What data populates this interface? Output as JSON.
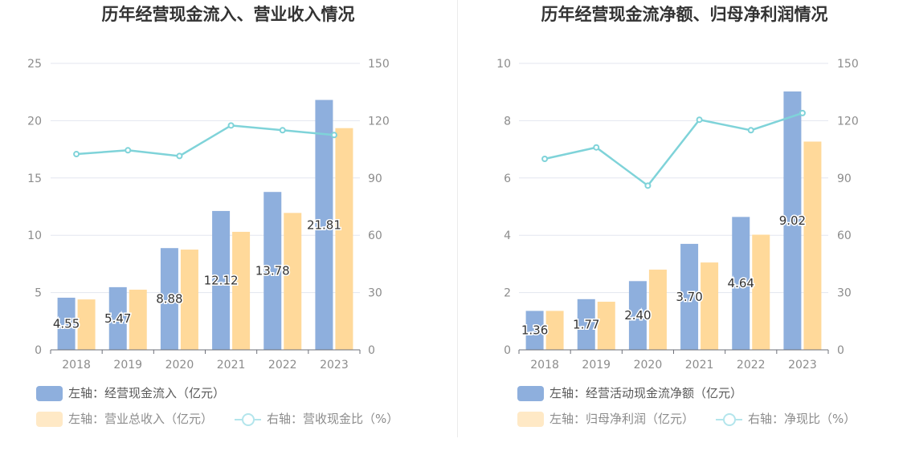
{
  "colors": {
    "bar_primary": "#8eafdd",
    "bar_secondary": "#ffd99a",
    "line": "#7fd3d9",
    "legend_faded_bar": "#ffe9c6",
    "legend_faded_line": "#b3e5ec",
    "grid": "#e3e6ef",
    "axis_text": "#8c8c8c"
  },
  "charts": [
    {
      "title": "历年经营现金流入、营业收入情况",
      "legend": [
        {
          "label": "左轴：经营现金流入（亿元）",
          "icon": "bar-swatch-icon"
        },
        {
          "label": "左轴：营业总收入（亿元）",
          "icon": "bar-swatch-icon"
        },
        {
          "label": "右轴：营收现金比（%）",
          "icon": "line-marker-icon"
        }
      ]
    },
    {
      "title": "历年经营现金流净额、归母净利润情况",
      "legend": [
        {
          "label": "左轴：经营活动现金流净额（亿元）",
          "icon": "bar-swatch-icon"
        },
        {
          "label": "左轴：归母净利润（亿元）",
          "icon": "bar-swatch-icon"
        },
        {
          "label": "右轴：净现比（%）",
          "icon": "line-marker-icon"
        }
      ]
    }
  ],
  "chart_data": [
    {
      "type": "bar",
      "title": "历年经营现金流入、营业收入情况",
      "categories": [
        "2018",
        "2019",
        "2020",
        "2021",
        "2022",
        "2023"
      ],
      "ylim_left": [
        0,
        25
      ],
      "left_ticks": [
        "0",
        "5",
        "10",
        "15",
        "20",
        "25"
      ],
      "ylim_right": [
        0,
        150
      ],
      "right_ticks": [
        "0",
        "30",
        "60",
        "90",
        "120",
        "150"
      ],
      "grid": true,
      "legend_position": "bottom-left",
      "series": [
        {
          "name": "左轴：经营现金流入（亿元）",
          "axis": "left",
          "type": "bar",
          "values": [
            4.55,
            5.47,
            8.88,
            12.12,
            13.78,
            21.81
          ],
          "labels": [
            "4.55",
            "5.47",
            "8.88",
            "12.12",
            "13.78",
            "21.81"
          ]
        },
        {
          "name": "左轴：营业总收入（亿元）",
          "axis": "left",
          "type": "bar",
          "values": [
            4.4,
            5.25,
            8.75,
            10.3,
            11.95,
            19.35
          ]
        },
        {
          "name": "右轴：营收现金比（%）",
          "axis": "right",
          "type": "line",
          "values": [
            102.5,
            104.5,
            101.5,
            117.5,
            115.0,
            112.5
          ]
        }
      ]
    },
    {
      "type": "bar",
      "title": "历年经营现金流净额、归母净利润情况",
      "categories": [
        "2018",
        "2019",
        "2020",
        "2021",
        "2022",
        "2023"
      ],
      "ylim_left": [
        0,
        10
      ],
      "left_ticks": [
        "0",
        "2",
        "4",
        "6",
        "8",
        "10"
      ],
      "ylim_right": [
        0,
        150
      ],
      "right_ticks": [
        "0",
        "30",
        "60",
        "90",
        "120",
        "150"
      ],
      "grid": true,
      "legend_position": "bottom-left",
      "series": [
        {
          "name": "左轴：经营活动现金流净额（亿元）",
          "axis": "left",
          "type": "bar",
          "values": [
            1.36,
            1.77,
            2.4,
            3.7,
            4.64,
            9.02
          ],
          "labels": [
            "1.36",
            "1.77",
            "2.40",
            "3.70",
            "4.64",
            "9.02"
          ]
        },
        {
          "name": "左轴：归母净利润（亿元）",
          "axis": "left",
          "type": "bar",
          "values": [
            1.36,
            1.68,
            2.8,
            3.05,
            4.02,
            7.27
          ]
        },
        {
          "name": "右轴：净现比（%）",
          "axis": "right",
          "type": "line",
          "values": [
            100.0,
            106.0,
            86.0,
            120.5,
            115.0,
            124.0
          ]
        }
      ]
    }
  ]
}
